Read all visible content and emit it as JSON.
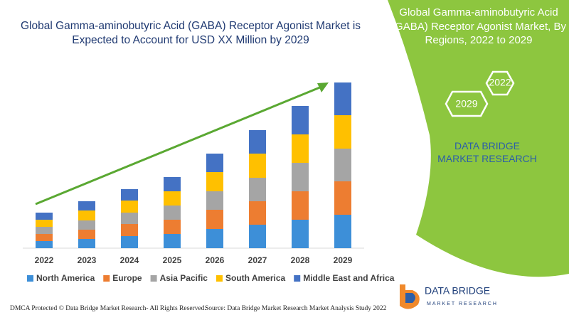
{
  "chart_data": {
    "type": "bar",
    "stacked": true,
    "title": "Global Gamma-aminobutyric Acid (GABA) Receptor Agonist Market is Expected to Account for USD XX Million by 2029",
    "categories": [
      "2022",
      "2023",
      "2024",
      "2025",
      "2026",
      "2027",
      "2028",
      "2029"
    ],
    "series": [
      {
        "name": "North America",
        "color": "#3d8fd8",
        "values": [
          10,
          13,
          17,
          20,
          27,
          33,
          40,
          47
        ]
      },
      {
        "name": "Europe",
        "color": "#ed7d31",
        "values": [
          10,
          13,
          17,
          20,
          27,
          33,
          40,
          47
        ]
      },
      {
        "name": "Asia Pacific",
        "color": "#a5a5a5",
        "values": [
          10,
          13,
          16,
          20,
          26,
          33,
          40,
          46
        ]
      },
      {
        "name": "South America",
        "color": "#ffc000",
        "values": [
          10,
          14,
          17,
          20,
          27,
          34,
          40,
          47
        ]
      },
      {
        "name": "Middle East and Africa",
        "color": "#4472c4",
        "values": [
          10,
          13,
          16,
          20,
          26,
          33,
          40,
          46
        ]
      }
    ],
    "ylim": [
      0,
      240
    ]
  },
  "side_panel": {
    "title": "Global Gamma-aminobutyric Acid (GABA) Receptor Agonist Market, By Regions, 2022 to 2029",
    "start_year": "2022",
    "end_year": "2029",
    "brand": "DATA BRIDGE MARKET RESEARCH"
  },
  "logo": {
    "name": "DATA BRIDGE",
    "tagline": "MARKET RESEARCH"
  },
  "footer": {
    "left": "DMCA Protected © Data Bridge Market Research- All Rights Reserved.",
    "right": "Source: Data Bridge Market Research Market Analysis Study 2022"
  }
}
